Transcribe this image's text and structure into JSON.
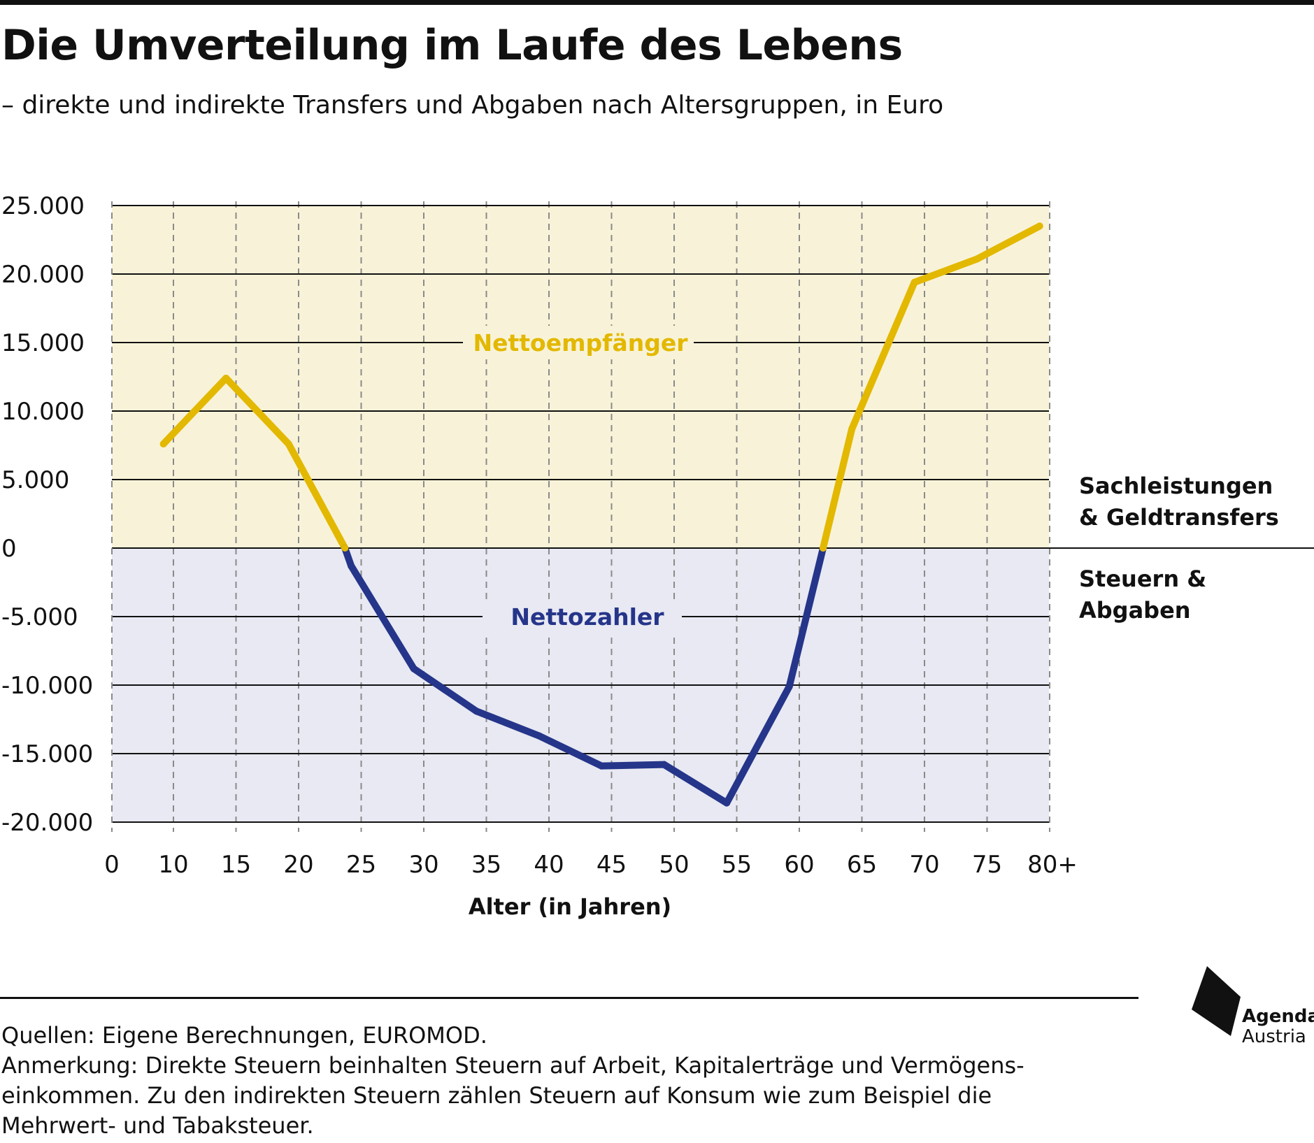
{
  "title": "Die Umverteilung im Laufe des Lebens",
  "subtitle": "– direkte und indirekte Transfers und Abgaben nach Altersgruppen, in Euro",
  "colors": {
    "positive_line": "#E3B800",
    "negative_line": "#25358A",
    "positive_band": "#F8F3D8",
    "negative_band": "#E8E9F2"
  },
  "chart_data": {
    "type": "line",
    "xlabel": "Alter (in Jahren)",
    "ylabel": "",
    "x_ticks": [
      "0",
      "10",
      "15",
      "20",
      "25",
      "30",
      "35",
      "40",
      "45",
      "50",
      "55",
      "60",
      "65",
      "70",
      "75",
      "80+"
    ],
    "y_ticks": [
      "25.000",
      "20.000",
      "15.000",
      "10.000",
      "5.000",
      "0",
      "-5.000",
      "-10.000",
      "-15.000",
      "-20.000"
    ],
    "ylim": [
      -20000,
      25000
    ],
    "xlim": [
      5,
      80
    ],
    "grid": true,
    "annotations": {
      "positive_region": "Nettoempfänger",
      "negative_region": "Nettozahler",
      "right_label_positive": [
        "Sachleistungen",
        "& Geldtransfers"
      ],
      "right_label_negative": [
        "Steuern &",
        "Abgaben"
      ]
    },
    "series": [
      {
        "x": [
          9.2,
          14.2,
          19.2,
          23.7,
          24.2,
          29.2,
          34.2,
          39.2,
          44.2,
          49.2,
          54.2,
          59.2,
          61.9,
          64.2,
          69.2,
          74.2,
          79.2
        ],
        "y": [
          7600,
          12400,
          7600,
          0,
          -1300,
          -8800,
          -11900,
          -13700,
          -15900,
          -15800,
          -18600,
          -10100,
          0,
          8700,
          19400,
          21100,
          23500
        ]
      }
    ]
  },
  "footnotes": {
    "sources": "Quellen: Eigene Berechnungen, EUROMOD.",
    "note_line1": "Anmerkung: Direkte Steuern beinhalten Steuern auf Arbeit, Kapitalerträge und Vermögens-",
    "note_line2": "einkommen. Zu den indirekten Steuern zählen Steuern auf Konsum wie zum Beispiel die",
    "note_line3": "Mehrwert- und Tabaksteuer."
  },
  "logo": {
    "line1": "Agenda",
    "line2": "Austria"
  }
}
